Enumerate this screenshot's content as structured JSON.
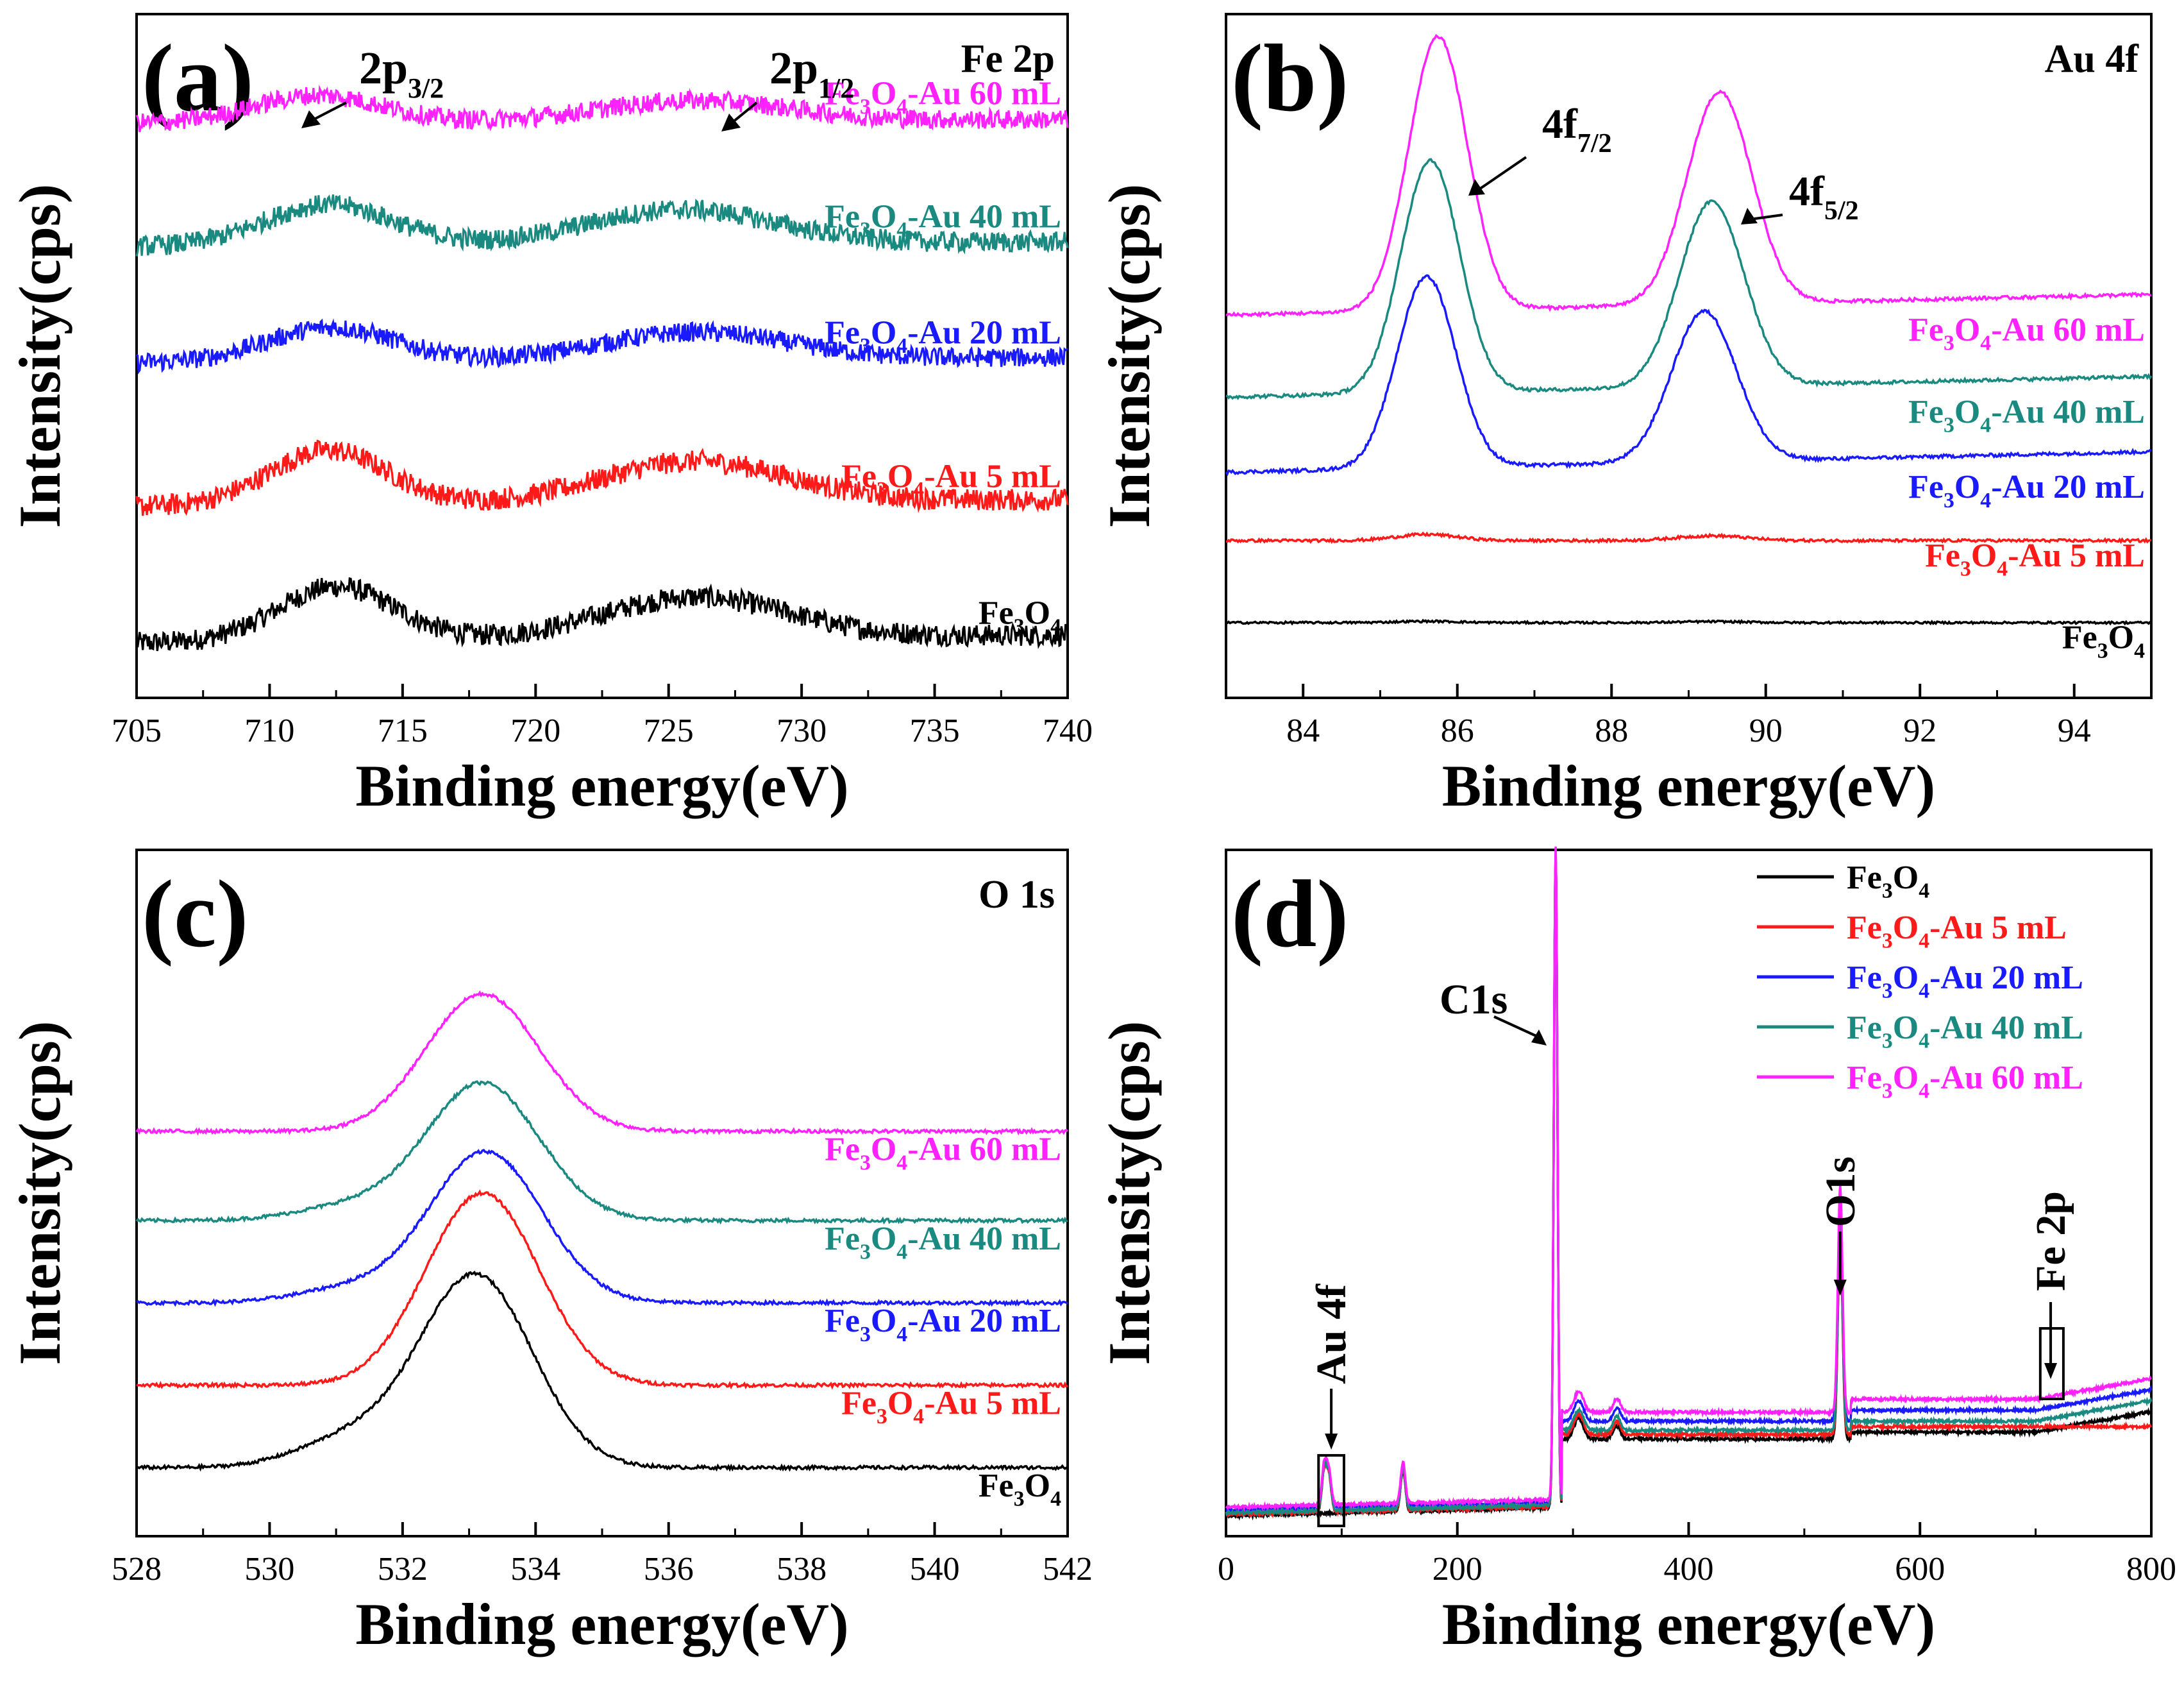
{
  "figure": {
    "colors": {
      "Fe3O4": "#000000",
      "Au5": "#ff1a1a",
      "Au20": "#1a1aff",
      "Au40": "#1a8a80",
      "Au60": "#ff22ff"
    },
    "series_names": [
      "Fe3O4",
      "Fe3O4-Au 5 mL",
      "Fe3O4-Au 20 mL",
      "Fe3O4-Au 40 mL",
      "Fe3O4-Au 60 mL"
    ]
  },
  "chart_data": [
    {
      "id": "a",
      "type": "line",
      "panel_label": "(a)",
      "title": "Fe 2p",
      "xlabel": "Binding energy(eV)",
      "ylabel": "Intensity(cps)",
      "xlim": [
        705,
        740
      ],
      "xticks": [
        705,
        710,
        715,
        720,
        725,
        730,
        735,
        740
      ],
      "ylim": [
        0,
        100
      ],
      "yticks": false,
      "noisy": true,
      "series": [
        {
          "name": "Fe3O4",
          "label_main": "Fe",
          "label_sub1": "3",
          "label_mid": "O",
          "label_sub2": "4",
          "label_tail": "",
          "color": "#000000",
          "base": 8,
          "peaks": [
            [
              712.5,
              8,
              2.2
            ],
            [
              726,
              6,
              3.5
            ]
          ],
          "slope": 0.12,
          "noise": 1.6
        },
        {
          "name": "Fe3O4-Au 5 mL",
          "label_main": "Fe",
          "label_sub1": "3",
          "label_mid": "O",
          "label_sub2": "4",
          "label_tail": "-Au 5 mL",
          "color": "#ff1a1a",
          "base": 28,
          "peaks": [
            [
              712.2,
              8,
              2.2
            ],
            [
              726,
              6,
              3.5
            ]
          ],
          "slope": 0.1,
          "noise": 1.6
        },
        {
          "name": "Fe3O4-Au 20 mL",
          "label_main": "Fe",
          "label_sub1": "3",
          "label_mid": "O",
          "label_sub2": "4",
          "label_tail": "-Au 20 mL",
          "color": "#1a1aff",
          "base": 49,
          "peaks": [
            [
              712.3,
              5,
              2.4
            ],
            [
              726,
              4,
              3.5
            ]
          ],
          "slope": 0.08,
          "noise": 1.4
        },
        {
          "name": "Fe3O4-Au 40 mL",
          "label_main": "Fe",
          "label_sub1": "3",
          "label_mid": "O",
          "label_sub2": "4",
          "label_tail": "-Au 40 mL",
          "color": "#1a8a80",
          "base": 66,
          "peaks": [
            [
              712.2,
              6,
              2.4
            ],
            [
              725.5,
              5,
              3.5
            ]
          ],
          "slope": 0.07,
          "noise": 1.5
        },
        {
          "name": "Fe3O4-Au 60 mL",
          "label_main": "Fe",
          "label_sub1": "3",
          "label_mid": "O",
          "label_sub2": "4",
          "label_tail": "-Au 60 mL",
          "color": "#ff22ff",
          "base": 84,
          "peaks": [
            [
              711.8,
              4,
              2.4
            ],
            [
              726,
              3,
              3.5
            ]
          ],
          "slope": 0.06,
          "noise": 1.4
        }
      ],
      "annotations": [
        {
          "text": "2p",
          "sub": "3/2",
          "x": 711.8
        },
        {
          "text": "2p",
          "sub": "1/2",
          "x": 727.5
        }
      ]
    },
    {
      "id": "b",
      "type": "line",
      "panel_label": "(b)",
      "title": "Au 4f",
      "xlabel": "Binding energy(eV)",
      "ylabel": "Intensity(cps)",
      "xlim": [
        83,
        95
      ],
      "xticks": [
        84,
        86,
        88,
        90,
        92,
        94
      ],
      "ylim": [
        0,
        100
      ],
      "yticks": false,
      "noisy": false,
      "series": [
        {
          "name": "Fe3O4",
          "label_main": "Fe",
          "label_sub1": "3",
          "label_mid": "O",
          "label_sub2": "4",
          "label_tail": "",
          "color": "#000000",
          "base": 11,
          "peaks": [
            [
              85.6,
              0.2,
              0.4
            ],
            [
              89.3,
              0.15,
              0.45
            ]
          ],
          "slope": 0,
          "noise": 0.15
        },
        {
          "name": "Fe3O4-Au 5 mL",
          "label_main": "Fe",
          "label_sub1": "3",
          "label_mid": "O",
          "label_sub2": "4",
          "label_tail": "-Au 5 mL",
          "color": "#ff1a1a",
          "base": 23,
          "peaks": [
            [
              85.6,
              0.9,
              0.4
            ],
            [
              89.3,
              0.7,
              0.45
            ]
          ],
          "slope": 0,
          "noise": 0.2
        },
        {
          "name": "Fe3O4-Au 20 mL",
          "label_main": "Fe",
          "label_sub1": "3",
          "label_mid": "O",
          "label_sub2": "4",
          "label_tail": "-Au 20 mL",
          "color": "#1a1aff",
          "base": 33,
          "peaks": [
            [
              85.6,
              28,
              0.38
            ],
            [
              89.2,
              22,
              0.42
            ]
          ],
          "slope": 0.3,
          "noise": 0.25
        },
        {
          "name": "Fe3O4-Au 40 mL",
          "label_main": "Fe",
          "label_sub1": "3",
          "label_mid": "O",
          "label_sub2": "4",
          "label_tail": "-Au 40 mL",
          "color": "#1a8a80",
          "base": 44,
          "peaks": [
            [
              85.65,
              34,
              0.38
            ],
            [
              89.3,
              27,
              0.42
            ]
          ],
          "slope": 0.3,
          "noise": 0.25
        },
        {
          "name": "Fe3O4-Au 60 mL",
          "label_main": "Fe",
          "label_sub1": "3",
          "label_mid": "O",
          "label_sub2": "4",
          "label_tail": "-Au 60 mL",
          "color": "#ff22ff",
          "base": 56,
          "peaks": [
            [
              85.75,
              40,
              0.38
            ],
            [
              89.4,
              31,
              0.42
            ]
          ],
          "slope": 0.3,
          "noise": 0.25
        }
      ],
      "annotations": [
        {
          "text": "4f",
          "sub": "7/2",
          "x": 85.9
        },
        {
          "text": "4f",
          "sub": "5/2",
          "x": 89.5
        }
      ]
    },
    {
      "id": "c",
      "type": "line",
      "panel_label": "(c)",
      "title": "O 1s",
      "xlabel": "Binding energy(eV)",
      "ylabel": "Intensity(cps)",
      "xlim": [
        528,
        542
      ],
      "xticks": [
        528,
        530,
        532,
        534,
        536,
        538,
        540,
        542
      ],
      "ylim": [
        0,
        100
      ],
      "yticks": false,
      "noisy": false,
      "series": [
        {
          "name": "Fe3O4",
          "label_main": "Fe",
          "label_sub1": "3",
          "label_mid": "O",
          "label_sub2": "4",
          "label_tail": "",
          "color": "#000000",
          "base": 10,
          "peaks": [
            [
              533.1,
              28,
              0.85
            ],
            [
              531.2,
              4,
              0.8
            ]
          ],
          "slope": 0,
          "noise": 0.25
        },
        {
          "name": "Fe3O4-Au 5 mL",
          "label_main": "Fe",
          "label_sub1": "3",
          "label_mid": "O",
          "label_sub2": "4",
          "label_tail": "-Au 5 mL",
          "color": "#ff1a1a",
          "base": 22,
          "peaks": [
            [
              533.2,
              28,
              0.85
            ]
          ],
          "slope": 0,
          "noise": 0.25
        },
        {
          "name": "Fe3O4-Au 20 mL",
          "label_main": "Fe",
          "label_sub1": "3",
          "label_mid": "O",
          "label_sub2": "4",
          "label_tail": "-Au 20 mL",
          "color": "#1a1aff",
          "base": 34,
          "peaks": [
            [
              533.25,
              22,
              0.85
            ],
            [
              531.2,
              2,
              0.8
            ]
          ],
          "slope": 0,
          "noise": 0.25
        },
        {
          "name": "Fe3O4-Au 40 mL",
          "label_main": "Fe",
          "label_sub1": "3",
          "label_mid": "O",
          "label_sub2": "4",
          "label_tail": "-Au 40 mL",
          "color": "#1a8a80",
          "base": 46,
          "peaks": [
            [
              533.2,
              20,
              0.85
            ],
            [
              531.2,
              2,
              0.8
            ]
          ],
          "slope": 0,
          "noise": 0.25
        },
        {
          "name": "Fe3O4-Au 60 mL",
          "label_main": "Fe",
          "label_sub1": "3",
          "label_mid": "O",
          "label_sub2": "4",
          "label_tail": "-Au 60 mL",
          "color": "#ff22ff",
          "base": 59,
          "peaks": [
            [
              533.2,
              20,
              0.85
            ]
          ],
          "slope": 0,
          "noise": 0.25
        }
      ],
      "annotations": []
    },
    {
      "id": "d",
      "type": "line",
      "panel_label": "(d)",
      "title": "",
      "xlabel": "Binding energy(eV)",
      "ylabel": "Intensity(cps)",
      "xlim": [
        0,
        800
      ],
      "xticks": [
        0,
        200,
        400,
        600,
        800
      ],
      "ylim": [
        0,
        100
      ],
      "yticks": false,
      "noisy": false,
      "legend_position": "top-right",
      "legend": [
        {
          "label_main": "Fe",
          "label_sub1": "3",
          "label_mid": "O",
          "label_sub2": "4",
          "label_tail": "",
          "color": "#000000"
        },
        {
          "label_main": "Fe",
          "label_sub1": "3",
          "label_mid": "O",
          "label_sub2": "4",
          "label_tail": "-Au 5 mL",
          "color": "#ff1a1a"
        },
        {
          "label_main": "Fe",
          "label_sub1": "3",
          "label_mid": "O",
          "label_sub2": "4",
          "label_tail": "-Au 20 mL",
          "color": "#1a1aff"
        },
        {
          "label_main": "Fe",
          "label_sub1": "3",
          "label_mid": "O",
          "label_sub2": "4",
          "label_tail": "-Au 40 mL",
          "color": "#1a8a80"
        },
        {
          "label_main": "Fe",
          "label_sub1": "3",
          "label_mid": "O",
          "label_sub2": "4",
          "label_tail": "-Au 60 mL",
          "color": "#ff22ff"
        }
      ],
      "series": [
        {
          "name": "Fe3O4",
          "color": "#000000",
          "offset": 0
        },
        {
          "name": "Fe3O4-Au 5 mL",
          "color": "#ff1a1a",
          "offset": 0.5
        },
        {
          "name": "Fe3O4-Au 20 mL",
          "color": "#1a1aff",
          "offset": 2
        },
        {
          "name": "Fe3O4-Au 40 mL",
          "color": "#1a8a80",
          "offset": 1
        },
        {
          "name": "Fe3O4-Au 60 mL",
          "color": "#ff22ff",
          "offset": 3
        }
      ],
      "annotations": [
        {
          "text": "C1s",
          "x": 285
        },
        {
          "text": "O1s",
          "x": 531
        },
        {
          "text": "Au 4f",
          "x": 92
        },
        {
          "text": "Fe 2p",
          "x": 712
        }
      ]
    }
  ]
}
